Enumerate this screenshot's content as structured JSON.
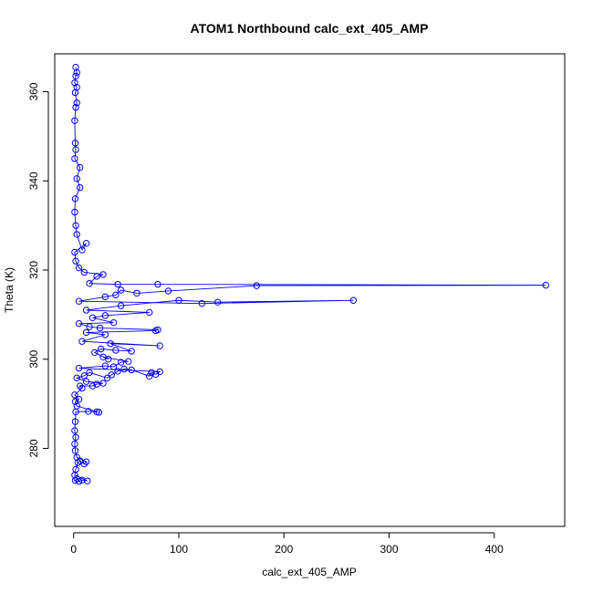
{
  "chart_data": {
    "type": "scatter",
    "title": "ATOM1 Northbound calc_ext_405_AMP",
    "xlabel": "calc_ext_405_AMP",
    "ylabel": "Theta (K)",
    "xlim": [
      -18,
      467
    ],
    "ylim": [
      262.5,
      368.5
    ],
    "xticks": [
      0,
      100,
      200,
      300,
      400
    ],
    "yticks": [
      280,
      300,
      320,
      340,
      360
    ],
    "style": {
      "color": "#0000ff",
      "marker": "open-circle",
      "lines": true,
      "grid": false,
      "legend": "none"
    },
    "series": [
      {
        "name": "",
        "points": [
          [
            1.5,
            272.8
          ],
          [
            3.0,
            273.2
          ],
          [
            5.0,
            272.6
          ],
          [
            8.0,
            272.9
          ],
          [
            13.0,
            272.7
          ],
          [
            1.0,
            274.0
          ],
          [
            2.0,
            275.3
          ],
          [
            4.0,
            276.8
          ],
          [
            6.0,
            277.2
          ],
          [
            10.0,
            276.5
          ],
          [
            12.0,
            277.0
          ],
          [
            3.0,
            278.0
          ],
          [
            1.5,
            279.5
          ],
          [
            1.0,
            281.0
          ],
          [
            2.0,
            282.5
          ],
          [
            1.0,
            284.0
          ],
          [
            1.5,
            286.0
          ],
          [
            2.0,
            288.2
          ],
          [
            14.0,
            288.3
          ],
          [
            22.0,
            288.2
          ],
          [
            24.0,
            288.1
          ],
          [
            3.0,
            289.5
          ],
          [
            1.5,
            290.5
          ],
          [
            5.0,
            291.0
          ],
          [
            1.0,
            292.0
          ],
          [
            8.0,
            293.5
          ],
          [
            6.0,
            294.0
          ],
          [
            18.0,
            294.0
          ],
          [
            22.0,
            294.4
          ],
          [
            28.0,
            294.6
          ],
          [
            12.0,
            295.0
          ],
          [
            3.0,
            295.8
          ],
          [
            10.0,
            296.3
          ],
          [
            15.0,
            297.0
          ],
          [
            32.0,
            295.8
          ],
          [
            36.0,
            296.5
          ],
          [
            42.0,
            297.3
          ],
          [
            48.0,
            297.8
          ],
          [
            55.0,
            297.6
          ],
          [
            72.0,
            296.2
          ],
          [
            74.0,
            297.0
          ],
          [
            78.0,
            296.6
          ],
          [
            82.0,
            297.2
          ],
          [
            5.0,
            298.0
          ],
          [
            30.0,
            298.5
          ],
          [
            38.0,
            298.3
          ],
          [
            45.0,
            299.3
          ],
          [
            52.0,
            299.5
          ],
          [
            28.0,
            300.5
          ],
          [
            33.0,
            300.0
          ],
          [
            20.0,
            301.5
          ],
          [
            26.0,
            302.3
          ],
          [
            40.0,
            302.0
          ],
          [
            55.0,
            301.8
          ],
          [
            35.0,
            303.5
          ],
          [
            82.0,
            303.0
          ],
          [
            8.0,
            304.0
          ],
          [
            30.0,
            305.5
          ],
          [
            12.0,
            306.0
          ],
          [
            78.0,
            306.4
          ],
          [
            80.0,
            306.6
          ],
          [
            25.0,
            307.0
          ],
          [
            15.0,
            307.3
          ],
          [
            5.0,
            308.0
          ],
          [
            38.0,
            308.2
          ],
          [
            18.0,
            309.3
          ],
          [
            30.0,
            309.8
          ],
          [
            72.0,
            310.5
          ],
          [
            12.0,
            311.0
          ],
          [
            45.0,
            312.0
          ],
          [
            100.0,
            313.2
          ],
          [
            137.0,
            312.8
          ],
          [
            266.0,
            313.2
          ],
          [
            122.0,
            312.5
          ],
          [
            5.0,
            313.0
          ],
          [
            30.0,
            314.0
          ],
          [
            40.0,
            314.4
          ],
          [
            45.0,
            315.5
          ],
          [
            60.0,
            314.8
          ],
          [
            90.0,
            315.3
          ],
          [
            174.0,
            316.5
          ],
          [
            449.0,
            316.6
          ],
          [
            80.0,
            316.8
          ],
          [
            42.0,
            316.8
          ],
          [
            15.0,
            317.0
          ],
          [
            22.0,
            318.6
          ],
          [
            28.0,
            319.0
          ],
          [
            10.0,
            319.5
          ],
          [
            5.0,
            320.5
          ],
          [
            2.0,
            322.0
          ],
          [
            1.0,
            324.0
          ],
          [
            12.0,
            326.0
          ],
          [
            8.0,
            324.5
          ],
          [
            3.0,
            328.0
          ],
          [
            2.0,
            330.0
          ],
          [
            1.0,
            333.0
          ],
          [
            1.5,
            336.0
          ],
          [
            6.0,
            338.5
          ],
          [
            3.0,
            340.5
          ],
          [
            6.0,
            343.0
          ],
          [
            1.0,
            345.0
          ],
          [
            2.0,
            347.0
          ],
          [
            1.5,
            348.5
          ],
          [
            1.0,
            353.5
          ],
          [
            2.0,
            356.5
          ],
          [
            3.0,
            357.5
          ],
          [
            1.5,
            359.8
          ],
          [
            3.0,
            361.0
          ],
          [
            1.0,
            362.0
          ],
          [
            2.0,
            363.5
          ],
          [
            3.0,
            364.3
          ],
          [
            2.0,
            365.5
          ]
        ]
      }
    ]
  }
}
